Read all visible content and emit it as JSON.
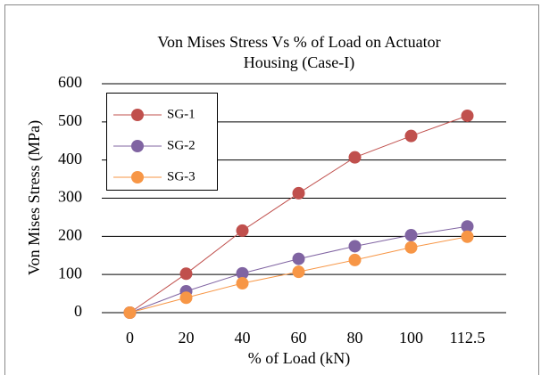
{
  "chart_data": {
    "type": "line",
    "title": [
      "Von Mises Stress Vs % of Load on Actuator",
      "Housing (Case-I)"
    ],
    "xlabel": "% of Load (kN)",
    "ylabel": "Von Mises Stress (MPa)",
    "categories": [
      "0",
      "20",
      "40",
      "60",
      "80",
      "100",
      "112.5"
    ],
    "series": [
      {
        "name": "SG-1",
        "color": "#c0504d",
        "values": [
          0,
          102,
          215,
          313,
          407,
          463,
          516
        ]
      },
      {
        "name": "SG-2",
        "color": "#8064a2",
        "values": [
          0,
          56,
          103,
          141,
          174,
          203,
          226
        ]
      },
      {
        "name": "SG-3",
        "color": "#f79646",
        "values": [
          0,
          39,
          77,
          107,
          138,
          171,
          199
        ]
      }
    ],
    "ylim": [
      0,
      600
    ],
    "yticks": [
      0,
      100,
      200,
      300,
      400,
      500,
      600
    ],
    "grid": true,
    "legend": "top-left"
  }
}
